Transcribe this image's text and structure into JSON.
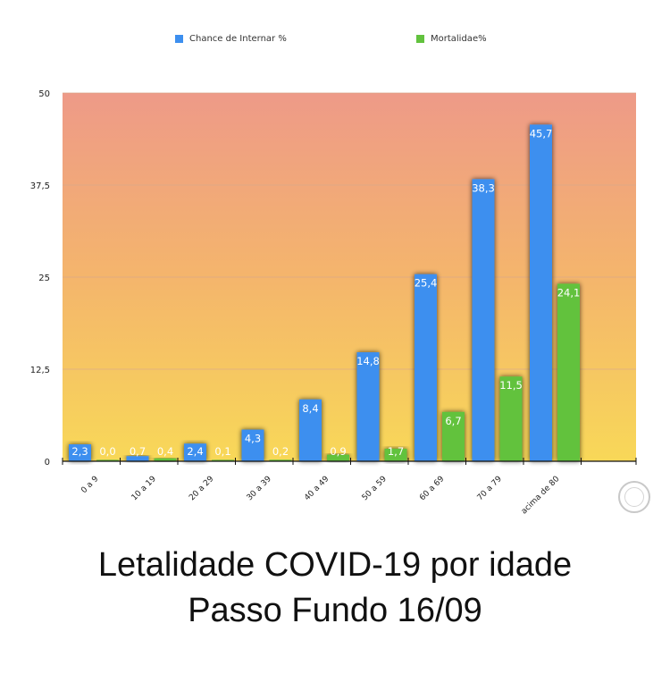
{
  "chart_data": {
    "type": "bar",
    "categories": [
      "0 a 9",
      "10 a 19",
      "20 a 29",
      "30 a 39",
      "40 a 49",
      "50 a 59",
      "60 a 69",
      "70 a 79",
      "acima de 80"
    ],
    "series": [
      {
        "name": "Chance de Internar %",
        "values": [
          2.3,
          0.7,
          2.4,
          4.3,
          8.4,
          14.8,
          25.4,
          38.3,
          45.7
        ],
        "labels": [
          "2,3",
          "0,7",
          "2,4",
          "4,3",
          "8,4",
          "14,8",
          "25,4",
          "38,3",
          "45,7"
        ],
        "color": "#3d8fef"
      },
      {
        "name": "Mortalidae%",
        "values": [
          0.0,
          0.4,
          0.1,
          0.2,
          0.9,
          1.7,
          6.7,
          11.5,
          24.1
        ],
        "labels": [
          "0,0",
          "0,4",
          "0,1",
          "0,2",
          "0,9",
          "1,7",
          "6,7",
          "11,5",
          "24,1"
        ],
        "color": "#62c23e"
      }
    ],
    "ylim": [
      0,
      50
    ],
    "yticks": [
      0,
      12.5,
      25,
      37.5,
      50
    ],
    "ytick_labels": [
      "0",
      "12,5",
      "25",
      "37,5",
      "50"
    ],
    "legend_position": "top",
    "background": "gradient red-to-yellow"
  },
  "title_lines": [
    "Letalidade COVID-19 por idade",
    "Passo Fundo 16/09"
  ]
}
